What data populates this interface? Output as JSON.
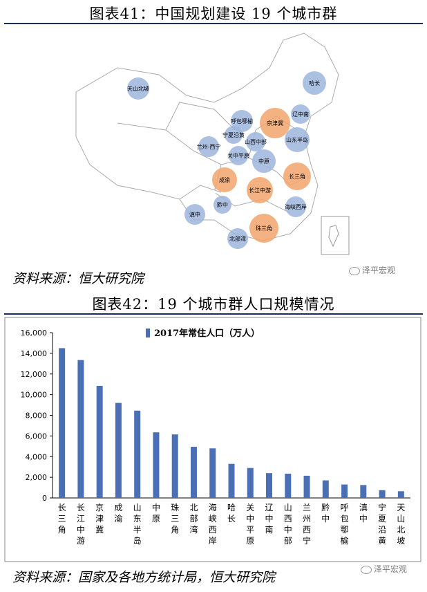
{
  "figure1": {
    "title": "图表41：中国规划建设 19 个城市群",
    "source": "资料来源：恒大研究院",
    "watermark": "泽平宏观",
    "regions": [
      {
        "label": "天山北坡",
        "color": "blue"
      },
      {
        "label": "哈长",
        "color": "blue"
      },
      {
        "label": "辽中南",
        "color": "blue"
      },
      {
        "label": "呼包鄂榆",
        "color": "blue"
      },
      {
        "label": "京津冀",
        "color": "orange"
      },
      {
        "label": "宁夏沿黄",
        "color": "blue"
      },
      {
        "label": "山西中部",
        "color": "blue"
      },
      {
        "label": "山东半岛",
        "color": "blue"
      },
      {
        "label": "兰州-西宁",
        "color": "blue"
      },
      {
        "label": "关中平原",
        "color": "blue"
      },
      {
        "label": "中原",
        "color": "blue"
      },
      {
        "label": "成渝",
        "color": "orange"
      },
      {
        "label": "长三角",
        "color": "orange"
      },
      {
        "label": "长江中游",
        "color": "orange"
      },
      {
        "label": "黔中",
        "color": "blue"
      },
      {
        "label": "滇中",
        "color": "blue"
      },
      {
        "label": "海峡西岸",
        "color": "blue"
      },
      {
        "label": "珠三角",
        "color": "orange"
      },
      {
        "label": "北部湾",
        "color": "blue"
      }
    ]
  },
  "figure2": {
    "title": "图表42：19 个城市群人口规模情况",
    "source": "资料来源：国家及各地方统计局，恒大研究院",
    "watermark": "泽平宏观"
  },
  "colors": {
    "bar": "#4a6fb5",
    "blue_circle": "#9db5dd",
    "orange_circle": "#f2a36b",
    "rule": "#1a2d5a"
  },
  "chart_data": {
    "type": "bar",
    "legend": "2017年常住人口（万人）",
    "legend_position": "top-center",
    "ylim": [
      0,
      16000
    ],
    "yticks": [
      "0",
      "2,000",
      "4,000",
      "6,000",
      "8,000",
      "10,000",
      "12,000",
      "14,000",
      "16,000"
    ],
    "categories": [
      "长三角",
      "长江中游",
      "京津冀",
      "成渝",
      "山东半岛",
      "中原",
      "珠三角",
      "北部湾",
      "海峡西岸",
      "哈长",
      "关中平原",
      "辽中南",
      "山西中部",
      "兰州西宁",
      "黔中",
      "呼包鄂榆",
      "滇中",
      "宁夏沿黄",
      "天山北坡"
    ],
    "values": [
      14500,
      13350,
      10850,
      9200,
      8450,
      6350,
      6150,
      4950,
      4800,
      3300,
      2900,
      2400,
      2350,
      2150,
      1700,
      1300,
      1250,
      750,
      650
    ],
    "grid": false
  }
}
